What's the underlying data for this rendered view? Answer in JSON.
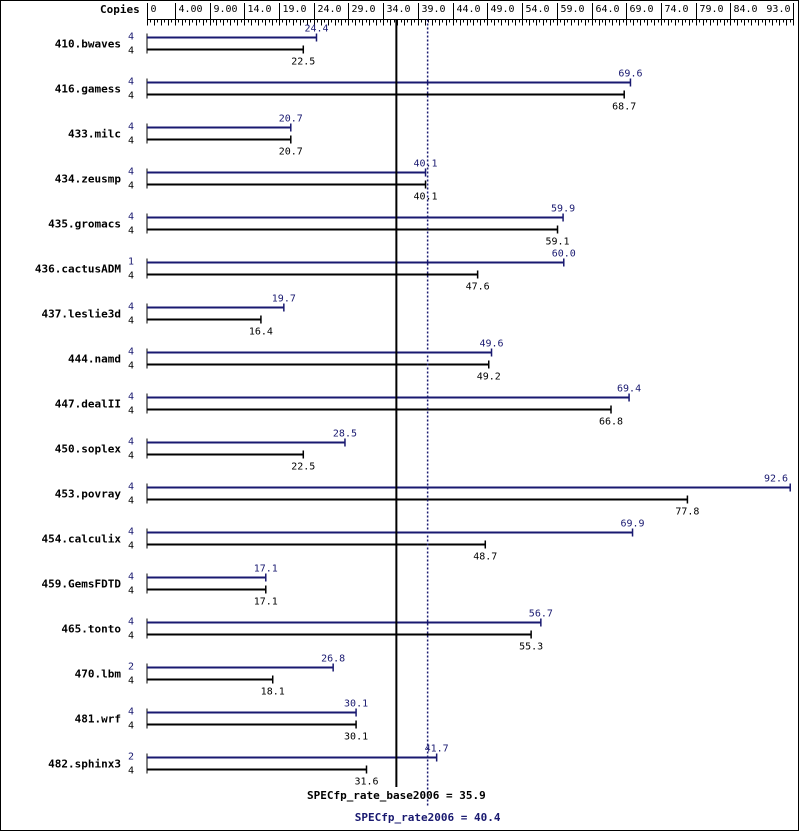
{
  "chart_data": {
    "type": "bar",
    "axis_header": "Copies",
    "xlim": [
      0,
      93.0
    ],
    "tick_labels": [
      "0",
      "4.00",
      "9.00",
      "14.0",
      "19.0",
      "24.0",
      "29.0",
      "34.0",
      "39.0",
      "44.0",
      "49.0",
      "54.0",
      "59.0",
      "64.0",
      "69.0",
      "74.0",
      "79.0",
      "84.0",
      "93.0"
    ],
    "tick_values": [
      0,
      4,
      9,
      14,
      19,
      24,
      29,
      34,
      39,
      44,
      49,
      54,
      59,
      64,
      69,
      74,
      79,
      84,
      93
    ],
    "colors": {
      "peak": "#191970",
      "base": "#000000"
    },
    "benchmarks": [
      {
        "name": "410.bwaves",
        "peak_copies": "4",
        "peak": 24.4,
        "peak_label": "24.4",
        "base_copies": "4",
        "base": 22.5,
        "base_label": "22.5"
      },
      {
        "name": "416.gamess",
        "peak_copies": "4",
        "peak": 69.6,
        "peak_label": "69.6",
        "base_copies": "4",
        "base": 68.7,
        "base_label": "68.7"
      },
      {
        "name": "433.milc",
        "peak_copies": "4",
        "peak": 20.7,
        "peak_label": "20.7",
        "base_copies": "4",
        "base": 20.7,
        "base_label": "20.7"
      },
      {
        "name": "434.zeusmp",
        "peak_copies": "4",
        "peak": 40.1,
        "peak_label": "40.1",
        "base_copies": "4",
        "base": 40.1,
        "base_label": "40.1"
      },
      {
        "name": "435.gromacs",
        "peak_copies": "4",
        "peak": 59.9,
        "peak_label": "59.9",
        "base_copies": "4",
        "base": 59.1,
        "base_label": "59.1"
      },
      {
        "name": "436.cactusADM",
        "peak_copies": "1",
        "peak": 60.0,
        "peak_label": "60.0",
        "base_copies": "4",
        "base": 47.6,
        "base_label": "47.6"
      },
      {
        "name": "437.leslie3d",
        "peak_copies": "4",
        "peak": 19.7,
        "peak_label": "19.7",
        "base_copies": "4",
        "base": 16.4,
        "base_label": "16.4"
      },
      {
        "name": "444.namd",
        "peak_copies": "4",
        "peak": 49.6,
        "peak_label": "49.6",
        "base_copies": "4",
        "base": 49.2,
        "base_label": "49.2"
      },
      {
        "name": "447.dealII",
        "peak_copies": "4",
        "peak": 69.4,
        "peak_label": "69.4",
        "base_copies": "4",
        "base": 66.8,
        "base_label": "66.8"
      },
      {
        "name": "450.soplex",
        "peak_copies": "4",
        "peak": 28.5,
        "peak_label": "28.5",
        "base_copies": "4",
        "base": 22.5,
        "base_label": "22.5"
      },
      {
        "name": "453.povray",
        "peak_copies": "4",
        "peak": 92.6,
        "peak_label": "92.6",
        "base_copies": "4",
        "base": 77.8,
        "base_label": "77.8"
      },
      {
        "name": "454.calculix",
        "peak_copies": "4",
        "peak": 69.9,
        "peak_label": "69.9",
        "base_copies": "4",
        "base": 48.7,
        "base_label": "48.7"
      },
      {
        "name": "459.GemsFDTD",
        "peak_copies": "4",
        "peak": 17.1,
        "peak_label": "17.1",
        "base_copies": "4",
        "base": 17.1,
        "base_label": "17.1"
      },
      {
        "name": "465.tonto",
        "peak_copies": "4",
        "peak": 56.7,
        "peak_label": "56.7",
        "base_copies": "4",
        "base": 55.3,
        "base_label": "55.3"
      },
      {
        "name": "470.lbm",
        "peak_copies": "2",
        "peak": 26.8,
        "peak_label": "26.8",
        "base_copies": "4",
        "base": 18.1,
        "base_label": "18.1"
      },
      {
        "name": "481.wrf",
        "peak_copies": "4",
        "peak": 30.1,
        "peak_label": "30.1",
        "base_copies": "4",
        "base": 30.1,
        "base_label": "30.1"
      },
      {
        "name": "482.sphinx3",
        "peak_copies": "2",
        "peak": 41.7,
        "peak_label": "41.7",
        "base_copies": "4",
        "base": 31.6,
        "base_label": "31.6"
      }
    ],
    "base_summary": {
      "value": 35.9,
      "label": "SPECfp_rate_base2006 = 35.9"
    },
    "peak_summary": {
      "value": 40.4,
      "label": "SPECfp_rate2006 = 40.4"
    }
  }
}
